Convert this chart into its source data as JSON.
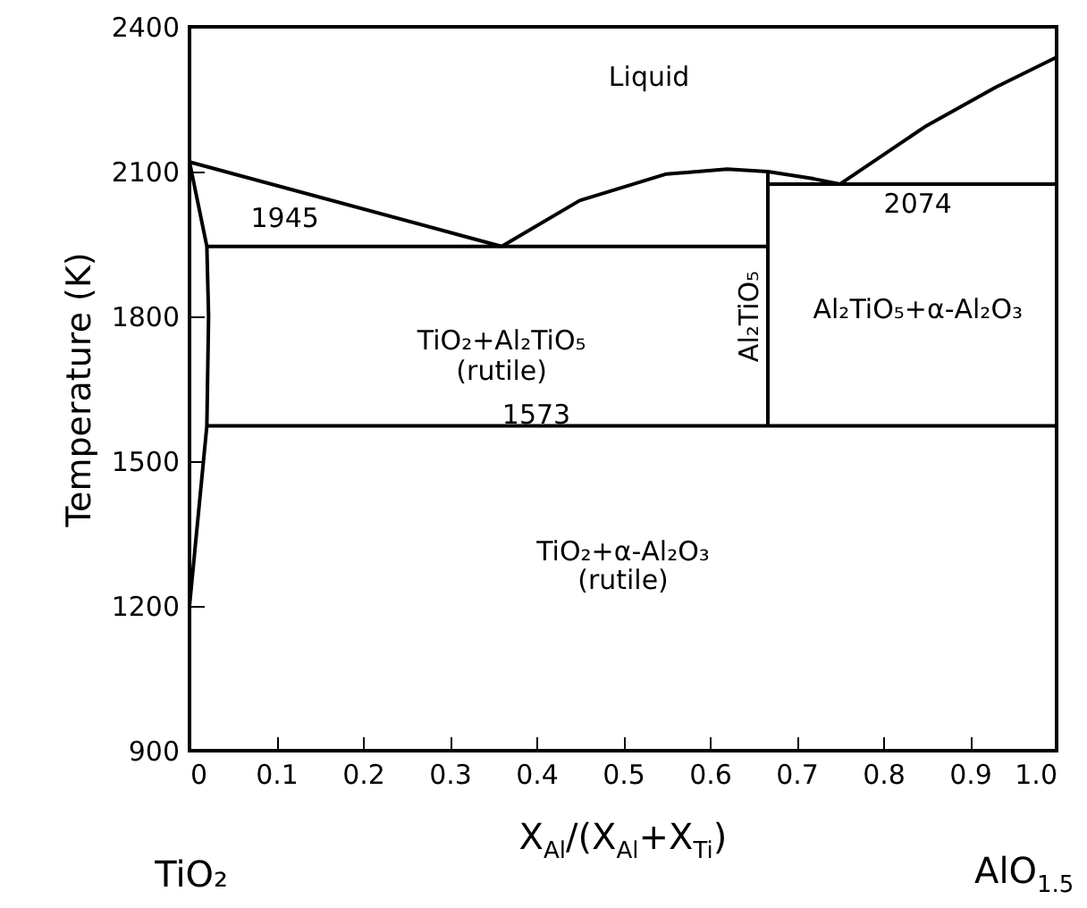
{
  "chart_data": {
    "type": "line",
    "xlabel": "X$_{Al}$/(X$_{Al}$+X$_{Ti}$)",
    "ylabel": "Temperature (K)",
    "xlim": [
      0,
      1
    ],
    "xticks": [
      0,
      0.1,
      0.2,
      0.3,
      0.4,
      0.5,
      0.6,
      0.7,
      0.8,
      0.9,
      {
        "value": 1,
        "label": "1.0"
      }
    ],
    "ylim": [
      900,
      2400
    ],
    "yticks": [
      900,
      1200,
      1500,
      1800,
      2100,
      2400
    ],
    "grid": false,
    "marker": "none",
    "line_style": "solid",
    "series": [
      {
        "color": "#000000",
        "x": [
          0,
          0.36
        ],
        "values": [
          2120,
          1945
        ]
      },
      {
        "color": "#000000",
        "x": [
          0.36,
          0.45,
          0.55,
          0.62,
          0.667,
          0.72,
          0.75
        ],
        "values": [
          1945,
          2040,
          2095,
          2105,
          2100,
          2085,
          2074
        ]
      },
      {
        "color": "#000000",
        "x": [
          0.75,
          0.85,
          0.93,
          1
        ],
        "values": [
          2074,
          2195,
          2275,
          2337
        ]
      },
      {
        "color": "#000000",
        "x": [
          0.02,
          0.667
        ],
        "values": [
          1945,
          1945
        ]
      },
      {
        "color": "#000000",
        "x": [
          0.667,
          1
        ],
        "values": [
          2074,
          2074
        ]
      },
      {
        "color": "#000000",
        "x": [
          0.02,
          1
        ],
        "values": [
          1573,
          1573
        ]
      },
      {
        "color": "#000000",
        "x": [
          0.667,
          0.667
        ],
        "values": [
          1573,
          2100
        ]
      },
      {
        "color": "#000000",
        "x": [
          0,
          0.02,
          0.022,
          0.02,
          0
        ],
        "values": [
          2120,
          1945,
          1800,
          1573,
          1200
        ]
      }
    ],
    "annotations": [
      "Liquid",
      "1945",
      "1573",
      "2074",
      "TiO₂+Al₂TiO₅\n(rutile)",
      "Al₂TiO₅",
      "Al₂TiO₅+α-Al₂O₃",
      "TiO₂+α-Al₂O₃\n(rutile)",
      "TiO₂",
      "AlO$_{1.5}$"
    ]
  }
}
